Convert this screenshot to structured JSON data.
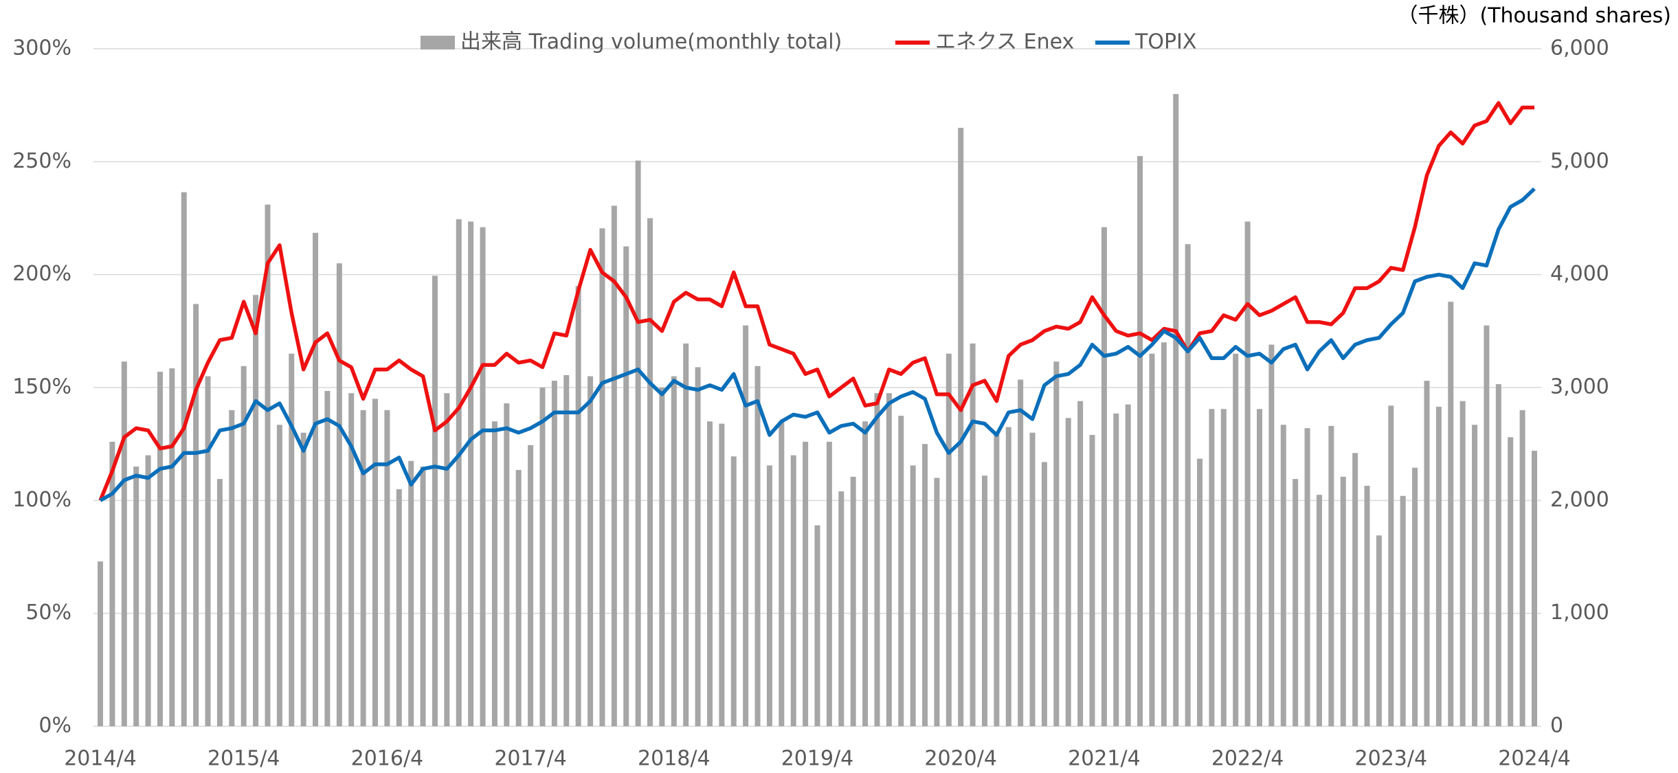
{
  "chart_data": {
    "type": "bar",
    "y2label": "（千株）(Thousand shares)",
    "categories": [
      "2014/4",
      null,
      null,
      null,
      null,
      null,
      null,
      null,
      null,
      null,
      null,
      null,
      "2015/4",
      null,
      null,
      null,
      null,
      null,
      null,
      null,
      null,
      null,
      null,
      null,
      "2016/4",
      null,
      null,
      null,
      null,
      null,
      null,
      null,
      null,
      null,
      null,
      null,
      "2017/4",
      null,
      null,
      null,
      null,
      null,
      null,
      null,
      null,
      null,
      null,
      null,
      "2018/4",
      null,
      null,
      null,
      null,
      null,
      null,
      null,
      null,
      null,
      null,
      null,
      "2019/4",
      null,
      null,
      null,
      null,
      null,
      null,
      null,
      null,
      null,
      null,
      null,
      "2020/4",
      null,
      null,
      null,
      null,
      null,
      null,
      null,
      null,
      null,
      null,
      null,
      "2021/4",
      null,
      null,
      null,
      null,
      null,
      null,
      null,
      null,
      null,
      null,
      null,
      "2022/4",
      null,
      null,
      null,
      null,
      null,
      null,
      null,
      null,
      null,
      null,
      null,
      "2023/4",
      null,
      null,
      null,
      null,
      null,
      null,
      null,
      null,
      null,
      null,
      null,
      "2024/4"
    ],
    "series": [
      {
        "name": "出来高 Trading volume(monthly total)",
        "type": "bar",
        "axis": "y2",
        "color": "#a6a6a6",
        "values": [
          1460,
          2520,
          3230,
          2300,
          2400,
          3140,
          3170,
          4730,
          3740,
          3100,
          2190,
          2800,
          3190,
          3820,
          4620,
          2670,
          3300,
          2600,
          4370,
          2970,
          4100,
          2950,
          2800,
          2900,
          2800,
          2100,
          2350,
          2300,
          3990,
          2950,
          4490,
          4470,
          4420,
          2700,
          2860,
          2270,
          2490,
          3000,
          3060,
          3110,
          3900,
          3100,
          4410,
          4610,
          4250,
          5010,
          4500,
          3000,
          3100,
          3390,
          3180,
          2700,
          2680,
          2390,
          3550,
          3190,
          2310,
          2700,
          2400,
          2520,
          1780,
          2520,
          2080,
          2210,
          2700,
          2950,
          2950,
          2750,
          2310,
          2500,
          2200,
          3300,
          5300,
          3390,
          2220,
          2610,
          2650,
          3070,
          2600,
          2340,
          3230,
          2730,
          2880,
          2580,
          4420,
          2770,
          2850,
          5050,
          3300,
          3400,
          5600,
          4270,
          2370,
          2810,
          2810,
          3300,
          4470,
          2810,
          3380,
          2670,
          2190,
          2640,
          2050,
          2660,
          2210,
          2420,
          2130,
          1690,
          2840,
          2040,
          2290,
          3060,
          2830,
          3760,
          2880,
          2670,
          3550,
          3030,
          2560,
          2800,
          2440
        ]
      },
      {
        "name": "エネクス Enex",
        "type": "line",
        "color": "#ee1111",
        "values": [
          100,
          113,
          128,
          132,
          131,
          123,
          124,
          132,
          149,
          161,
          171,
          172,
          188,
          174,
          205,
          213,
          183,
          158,
          170,
          174,
          162,
          159,
          145,
          158,
          158,
          162,
          158,
          155,
          131,
          135,
          141,
          150,
          160,
          160,
          165,
          161,
          162,
          159,
          174,
          173,
          193,
          211,
          201,
          197,
          190,
          179,
          180,
          175,
          188,
          192,
          189,
          189,
          186,
          201,
          186,
          186,
          169,
          167,
          165,
          156,
          158,
          146,
          150,
          154,
          142,
          143,
          158,
          156,
          161,
          163,
          147,
          147,
          140,
          151,
          153,
          144,
          164,
          169,
          171,
          175,
          177,
          176,
          179,
          190,
          182,
          175,
          173,
          174,
          171,
          176,
          175,
          166,
          174,
          175,
          182,
          180,
          187,
          182,
          184,
          187,
          190,
          179,
          179,
          178,
          183,
          194,
          194,
          197,
          203,
          202,
          221,
          244,
          257,
          263,
          258,
          266,
          268,
          276,
          267,
          274,
          274
        ]
      },
      {
        "name": "TOPIX",
        "type": "line",
        "color": "#0b6fba",
        "values": [
          100,
          103,
          109,
          111,
          110,
          114,
          115,
          121,
          121,
          122,
          131,
          132,
          134,
          144,
          140,
          143,
          133,
          122,
          134,
          136,
          133,
          124,
          112,
          116,
          116,
          119,
          107,
          114,
          115,
          114,
          120,
          127,
          131,
          131,
          132,
          130,
          132,
          135,
          139,
          139,
          139,
          144,
          152,
          154,
          156,
          158,
          152,
          147,
          153,
          150,
          149,
          151,
          149,
          156,
          142,
          144,
          129,
          135,
          138,
          137,
          139,
          130,
          133,
          134,
          130,
          137,
          143,
          146,
          148,
          145,
          130,
          121,
          126,
          135,
          134,
          129,
          139,
          140,
          136,
          151,
          155,
          156,
          160,
          169,
          164,
          165,
          168,
          164,
          169,
          175,
          172,
          166,
          172,
          163,
          163,
          168,
          164,
          165,
          161,
          167,
          169,
          158,
          166,
          171,
          163,
          169,
          171,
          172,
          178,
          183,
          197,
          199,
          200,
          199,
          194,
          205,
          204,
          220,
          230,
          233,
          238
        ]
      }
    ],
    "ylim": [
      0,
      300
    ],
    "yticks": [
      {
        "value": 0,
        "label": "0%"
      },
      {
        "value": 50,
        "label": "50%"
      },
      {
        "value": 100,
        "label": "100%"
      },
      {
        "value": 150,
        "label": "150%"
      },
      {
        "value": 200,
        "label": "200%"
      },
      {
        "value": 250,
        "label": "250%"
      },
      {
        "value": 300,
        "label": "300%"
      }
    ],
    "y2lim": [
      0,
      6000
    ],
    "y2ticks": [
      0,
      {
        "value": 1000,
        "label": "1,000"
      },
      {
        "value": 2000,
        "label": "2,000"
      },
      {
        "value": 3000,
        "label": "3,000"
      },
      {
        "value": 4000,
        "label": "4,000"
      },
      {
        "value": 5000,
        "label": "5,000"
      },
      {
        "value": 6000,
        "label": "6,000"
      }
    ],
    "grid": true,
    "legend": "top"
  }
}
